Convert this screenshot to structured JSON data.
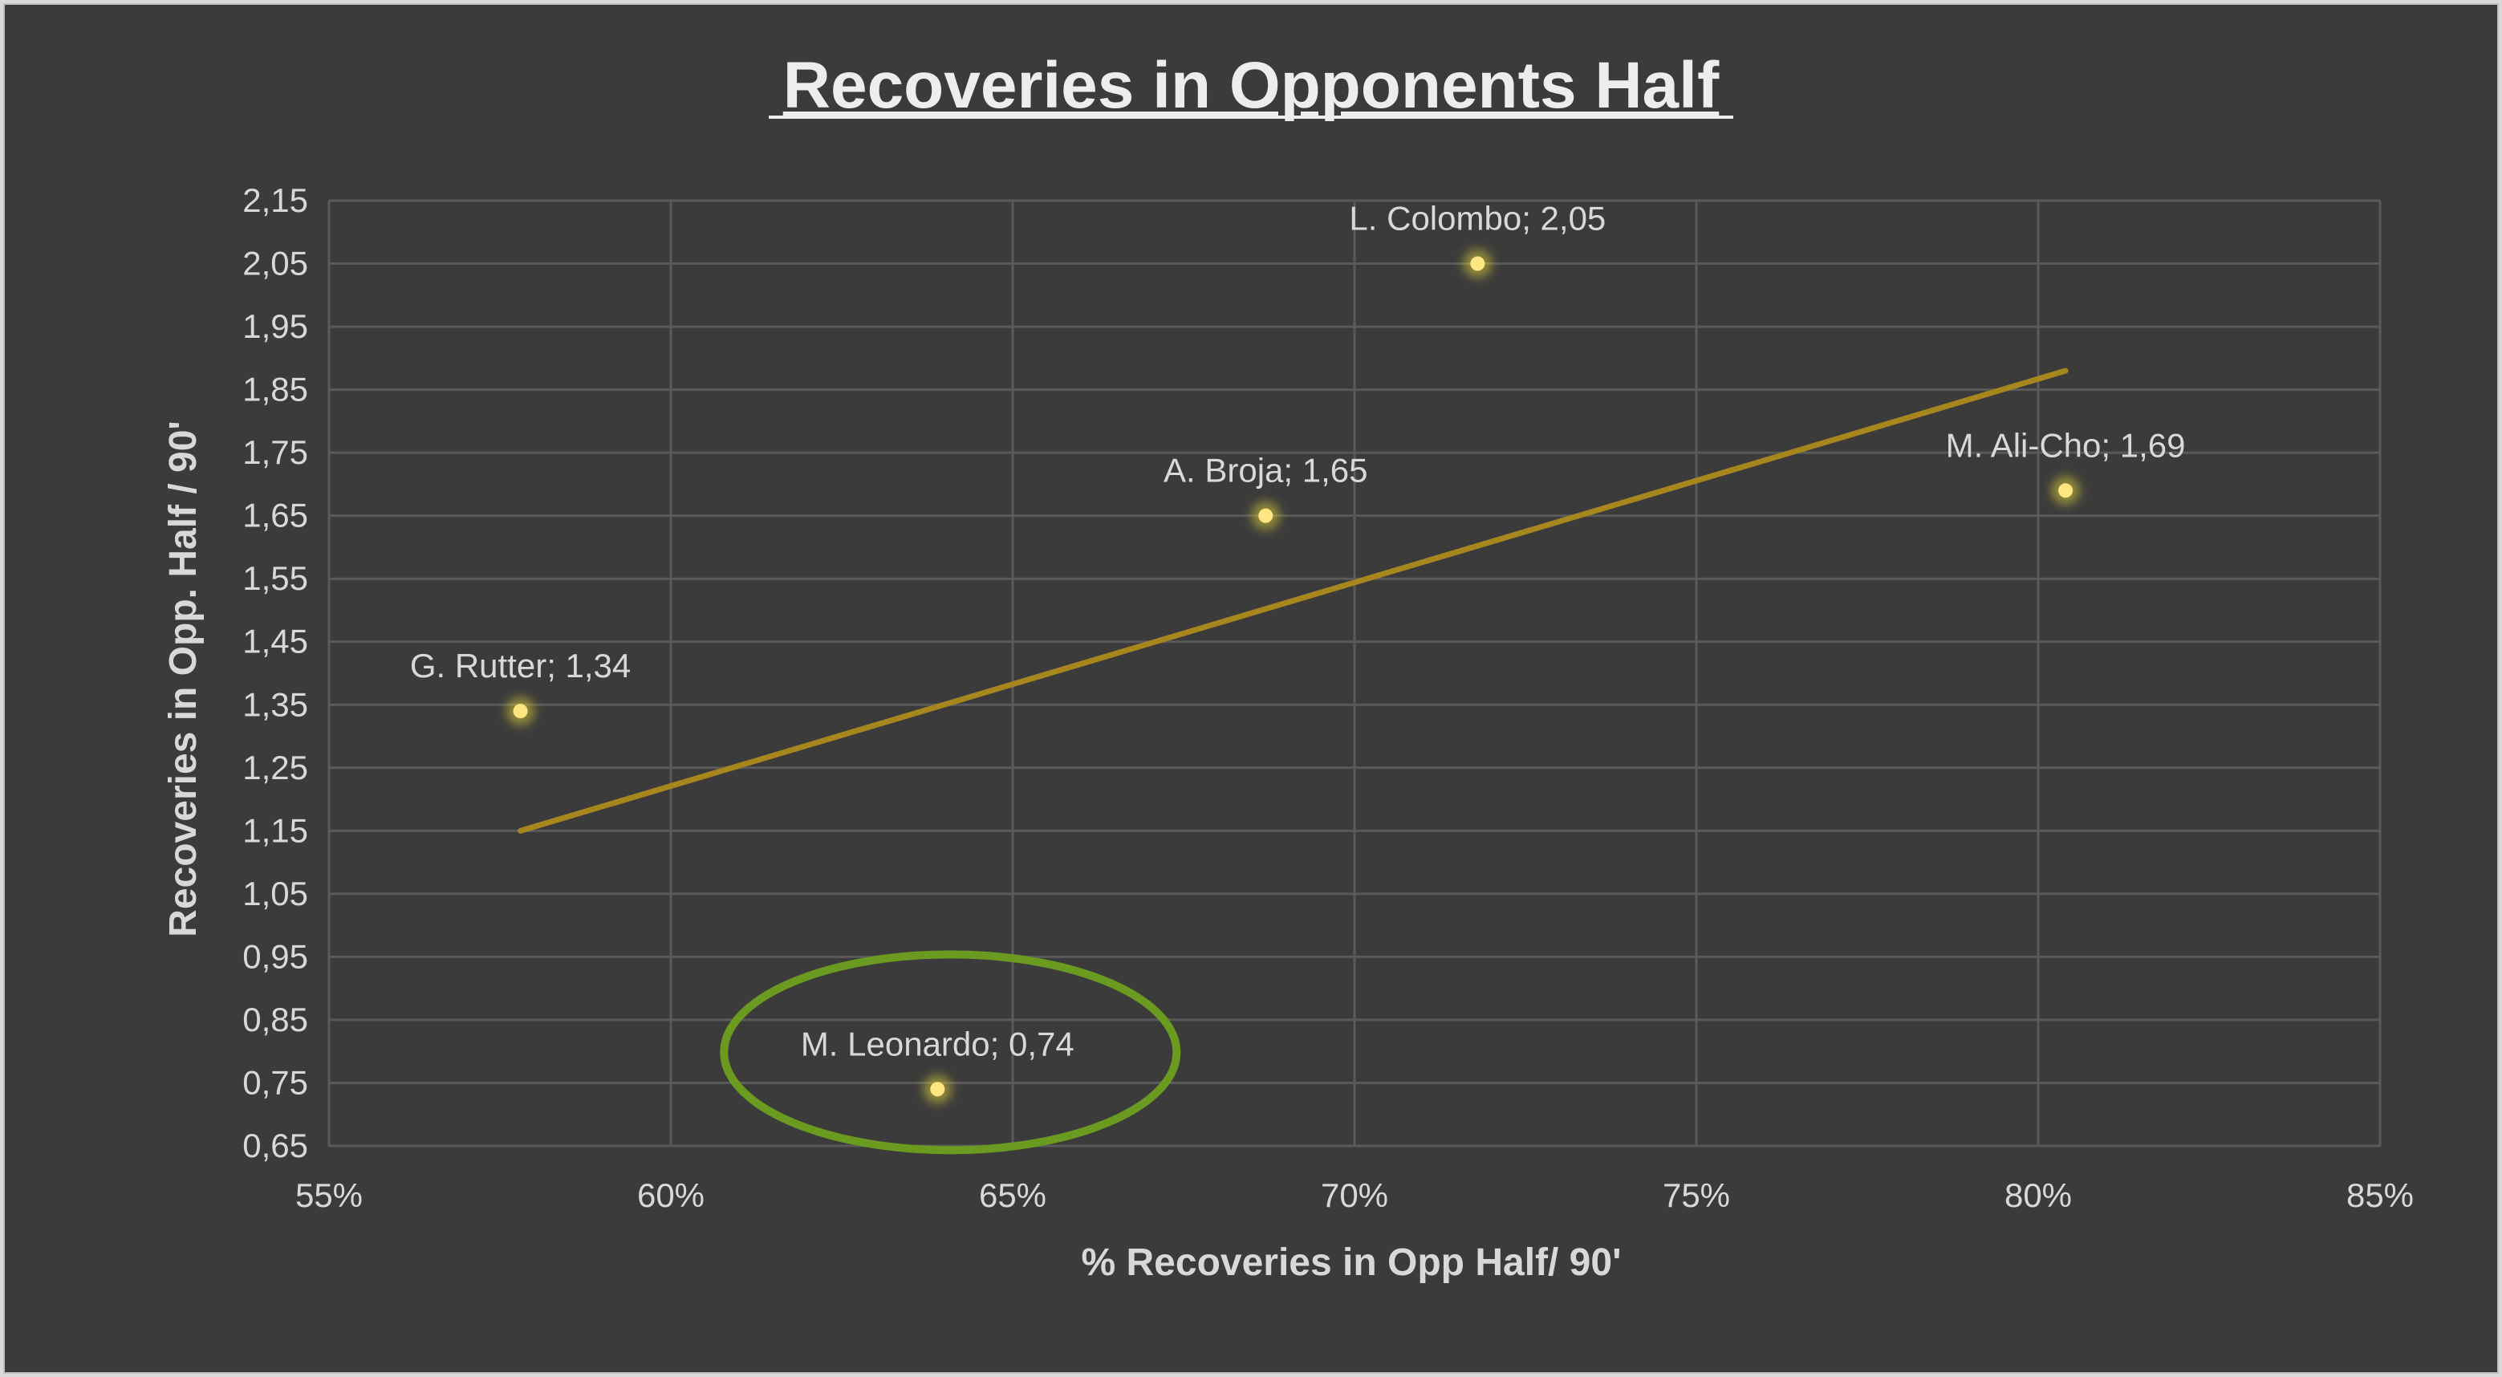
{
  "chart_data": {
    "type": "scatter",
    "title": "Recoveries in Opponents Half",
    "xlabel": "% Recoveries in Opp Half/ 90'",
    "ylabel": "Recoveries in Opp. Half / 90'",
    "xlim": [
      0.55,
      0.85
    ],
    "ylim": [
      0.65,
      2.15
    ],
    "x_ticks": [
      0.55,
      0.6,
      0.65,
      0.7,
      0.75,
      0.8,
      0.85
    ],
    "x_tick_labels": [
      "55%",
      "60%",
      "65%",
      "70%",
      "75%",
      "80%",
      "85%"
    ],
    "y_ticks": [
      0.65,
      0.75,
      0.85,
      0.95,
      1.05,
      1.15,
      1.25,
      1.35,
      1.45,
      1.55,
      1.65,
      1.75,
      1.85,
      1.95,
      2.05,
      2.15
    ],
    "y_tick_labels": [
      "0,65",
      "0,75",
      "0,85",
      "0,95",
      "1,05",
      "1,15",
      "1,25",
      "1,35",
      "1,45",
      "1,55",
      "1,65",
      "1,75",
      "1,85",
      "1,95",
      "2,05",
      "2,15"
    ],
    "grid": true,
    "points": [
      {
        "label": "G. Rutter; 1,34",
        "x": 0.578,
        "y": 1.34
      },
      {
        "label": "M. Leonardo; 0,74",
        "x": 0.639,
        "y": 0.74
      },
      {
        "label": "A. Broja; 1,65",
        "x": 0.687,
        "y": 1.65
      },
      {
        "label": "L. Colombo; 2,05",
        "x": 0.718,
        "y": 2.05
      },
      {
        "label": "M. Ali-Cho; 1,69",
        "x": 0.804,
        "y": 1.69
      }
    ],
    "trendline": {
      "x": [
        0.578,
        0.804
      ],
      "y": [
        1.15,
        1.88
      ]
    },
    "highlight": {
      "point_index": 1,
      "shape": "ellipse",
      "color": "#6a9a1f"
    },
    "colors": {
      "point": "#ffe680",
      "point_glow": "#d9cc3a",
      "trendline": "#a8861e",
      "grid": "#5a5a5a",
      "background": "#3b3b3b"
    }
  }
}
